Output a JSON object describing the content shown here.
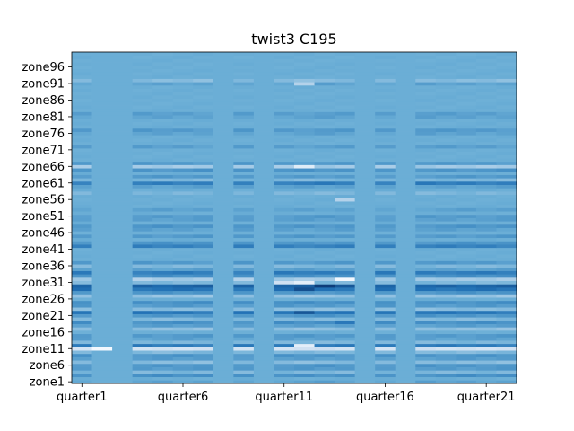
{
  "chart_data": {
    "type": "heatmap",
    "title": "twist3 C195",
    "xlabel": "",
    "ylabel": "",
    "n_cols": 22,
    "n_rows": 100,
    "x_tick_labels": [
      {
        "index": 0,
        "label": "quarter1"
      },
      {
        "index": 5,
        "label": "quarter6"
      },
      {
        "index": 10,
        "label": "quarter11"
      },
      {
        "index": 15,
        "label": "quarter16"
      },
      {
        "index": 20,
        "label": "quarter21"
      }
    ],
    "y_tick_labels": [
      {
        "index": 0,
        "label": "zone1"
      },
      {
        "index": 5,
        "label": "zone6"
      },
      {
        "index": 10,
        "label": "zone11"
      },
      {
        "index": 15,
        "label": "zone16"
      },
      {
        "index": 20,
        "label": "zone21"
      },
      {
        "index": 25,
        "label": "zone26"
      },
      {
        "index": 30,
        "label": "zone31"
      },
      {
        "index": 35,
        "label": "zone36"
      },
      {
        "index": 40,
        "label": "zone41"
      },
      {
        "index": 45,
        "label": "zone46"
      },
      {
        "index": 50,
        "label": "zone51"
      },
      {
        "index": 55,
        "label": "zone56"
      },
      {
        "index": 60,
        "label": "zone61"
      },
      {
        "index": 65,
        "label": "zone66"
      },
      {
        "index": 70,
        "label": "zone71"
      },
      {
        "index": 75,
        "label": "zone76"
      },
      {
        "index": 80,
        "label": "zone81"
      },
      {
        "index": 85,
        "label": "zone86"
      },
      {
        "index": 90,
        "label": "zone91"
      },
      {
        "index": 95,
        "label": "zone96"
      }
    ],
    "colormap": "Blues",
    "base_value": 0.5,
    "uniform_columns": [
      1,
      2,
      7,
      9,
      14,
      16
    ],
    "row_values": {
      "0": 0.55,
      "2": 0.62,
      "3": 0.45,
      "4": 0.58,
      "5": 0.6,
      "6": 0.42,
      "7": 0.57,
      "8": 0.6,
      "9": 0.44,
      "10": 0.2,
      "11": 0.7,
      "12": 0.45,
      "13": 0.55,
      "14": 0.58,
      "16": 0.4,
      "17": 0.56,
      "18": 0.62,
      "19": 0.44,
      "20": 0.6,
      "21": 0.72,
      "22": 0.42,
      "23": 0.58,
      "24": 0.62,
      "26": 0.38,
      "27": 0.6,
      "28": 0.74,
      "29": 0.8,
      "30": 0.45,
      "31": 0.35,
      "32": 0.62,
      "33": 0.7,
      "34": 0.55,
      "35": 0.45,
      "36": 0.58,
      "41": 0.68,
      "42": 0.6,
      "44": 0.58,
      "46": 0.55,
      "47": 0.6,
      "49": 0.56,
      "50": 0.58,
      "52": 0.55,
      "57": 0.45,
      "59": 0.55,
      "60": 0.7,
      "61": 0.45,
      "62": 0.58,
      "64": 0.6,
      "65": 0.35,
      "66": 0.58,
      "71": 0.56,
      "75": 0.55,
      "76": 0.58,
      "80": 0.55,
      "81": 0.56,
      "90": 0.55,
      "91": 0.42
    },
    "cell_overrides": [
      {
        "row": 10,
        "col": 1,
        "value": 0.02
      },
      {
        "row": 31,
        "col": 13,
        "value": 0.02
      },
      {
        "row": 30,
        "col": 11,
        "value": 0.1
      },
      {
        "row": 29,
        "col": 12,
        "value": 0.95
      },
      {
        "row": 28,
        "col": 11,
        "value": 0.88
      },
      {
        "row": 21,
        "col": 11,
        "value": 0.85
      },
      {
        "row": 11,
        "col": 11,
        "value": 0.1
      },
      {
        "row": 65,
        "col": 11,
        "value": 0.12
      },
      {
        "row": 30,
        "col": 10,
        "value": 0.2
      },
      {
        "row": 29,
        "col": 13,
        "value": 0.85
      },
      {
        "row": 18,
        "col": 13,
        "value": 0.72
      },
      {
        "row": 55,
        "col": 13,
        "value": 0.3
      },
      {
        "row": 33,
        "col": 0,
        "value": 0.72
      },
      {
        "row": 90,
        "col": 11,
        "value": 0.3
      },
      {
        "row": 31,
        "col": 3,
        "value": 0.3
      },
      {
        "row": 31,
        "col": 8,
        "value": 0.3
      }
    ]
  }
}
